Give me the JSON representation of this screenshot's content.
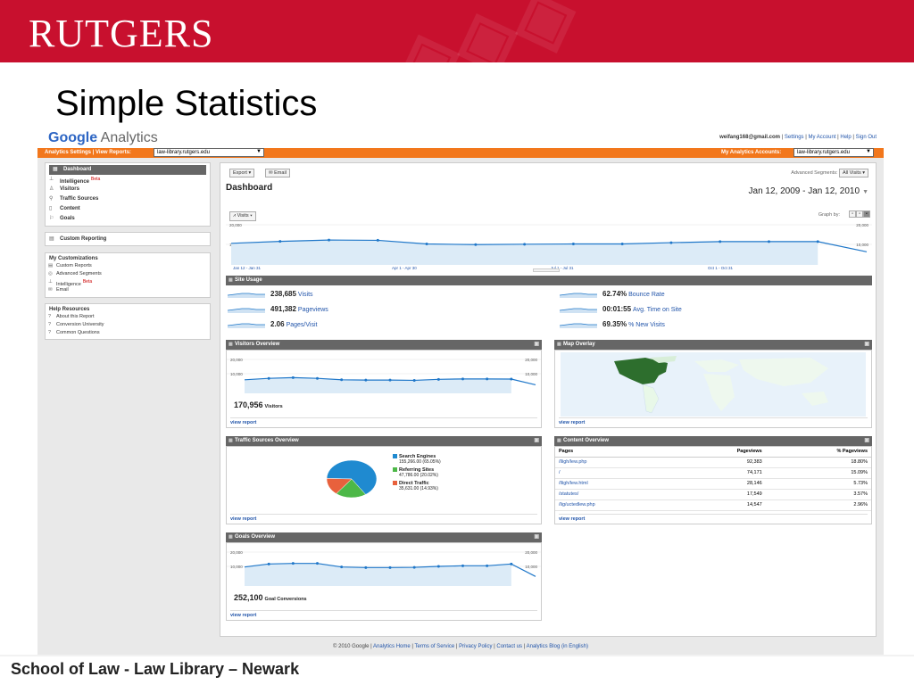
{
  "slide": {
    "banner_logo": "RUTGERS",
    "title": "Simple Statistics",
    "footer": "School of Law - Law Library – Newark",
    "colors": {
      "banner": "#c8102e",
      "ga_orange": "#f2771c",
      "link_blue": "#2255aa",
      "series_blue": "#1f77c9"
    }
  },
  "ga": {
    "logo_google": "Google",
    "logo_analytics": "Analytics",
    "user_email": "weifang168@gmail.com",
    "user_links": [
      "Settings",
      "My Account",
      "Help",
      "Sign Out"
    ],
    "bar_left": "Analytics Settings  |  View Reports:",
    "view_reports_value": "law-library.rutgers.edu",
    "bar_right": "My Analytics Accounts:",
    "accounts_value": "law-library.rutgers.edu"
  },
  "sidebar": {
    "nav": [
      {
        "label": "Dashboard",
        "icon": "grid-icon",
        "active": true
      },
      {
        "label": "Intelligence",
        "icon": "chart-icon",
        "beta": "Beta"
      },
      {
        "label": "Visitors",
        "icon": "person-icon"
      },
      {
        "label": "Traffic Sources",
        "icon": "traffic-icon"
      },
      {
        "label": "Content",
        "icon": "page-icon"
      },
      {
        "label": "Goals",
        "icon": "flag-icon"
      }
    ],
    "custom_reporting": "Custom Reporting",
    "my_customizations": {
      "title": "My Customizations",
      "items": [
        "Custom Reports",
        "Advanced Segments",
        "Intelligence",
        "Email"
      ],
      "beta": "Beta"
    },
    "help": {
      "title": "Help Resources",
      "items": [
        "About this Report",
        "Conversion University",
        "Common Questions"
      ]
    }
  },
  "toolbar": {
    "export": "Export",
    "email": "Email",
    "advanced_segments": "Advanced Segments:",
    "all_visits": "All Visits",
    "graph_by": "Graph by:",
    "visits_dropdown": "Visits"
  },
  "dashboard": {
    "title": "Dashboard",
    "date_range": "Jan 12, 2009 - Jan 12, 2010"
  },
  "main_chart": {
    "y_labels": [
      "20,000",
      "10,000"
    ],
    "x_labels": [
      "Jan 12 - Jan 31",
      "Apr 1 - Apr 30",
      "Jul 1 - Jul 31",
      "Oct 1 - Oct 31"
    ]
  },
  "site_usage": {
    "title": "Site Usage",
    "left": [
      {
        "value": "238,685",
        "label": "Visits"
      },
      {
        "value": "491,382",
        "label": "Pageviews"
      },
      {
        "value": "2.06",
        "label": "Pages/Visit"
      }
    ],
    "right": [
      {
        "value": "62.74%",
        "label": "Bounce Rate"
      },
      {
        "value": "00:01:55",
        "label": "Avg. Time on Site"
      },
      {
        "value": "69.35%",
        "label": "% New Visits"
      }
    ]
  },
  "visitors_overview": {
    "title": "Visitors Overview",
    "y_labels": [
      "20,000",
      "10,000"
    ],
    "total": "170,956",
    "unit": "Visitors",
    "view_report": "view report"
  },
  "map_overlay": {
    "title": "Map Overlay",
    "view_report": "view report"
  },
  "traffic_sources": {
    "title": "Traffic Sources Overview",
    "items": [
      {
        "label": "Search Engines",
        "detail": "155,266.00 (65.05%)",
        "color": "#1f8ad0"
      },
      {
        "label": "Referring Sites",
        "detail": "47,786.00 (20.02%)",
        "color": "#4db848"
      },
      {
        "label": "Direct Traffic",
        "detail": "35,631.00 (14.93%)",
        "color": "#e8613c"
      }
    ],
    "view_report": "view report"
  },
  "content_overview": {
    "title": "Content Overview",
    "columns": [
      "Pages",
      "Pageviews",
      "% Pageviews"
    ],
    "rows": [
      [
        "/lligh/lew.php",
        "92,383",
        "18.80%"
      ],
      [
        "/",
        "74,171",
        "15.09%"
      ],
      [
        "/lligh/lew.html",
        "28,146",
        "5.73%"
      ],
      [
        "/statutes/",
        "17,549",
        "3.57%"
      ],
      [
        "/lig/uctedlew.php",
        "14,547",
        "2.96%"
      ]
    ],
    "view_report": "view report"
  },
  "goals_overview": {
    "title": "Goals Overview",
    "y_labels": [
      "20,000",
      "10,000"
    ],
    "total": "252,100",
    "unit": "Goal Conversions",
    "view_report": "view report"
  },
  "footer_links": {
    "copyright": "© 2010 Google",
    "links": [
      "Analytics Home",
      "Terms of Service",
      "Privacy Policy",
      "Contact us",
      "Analytics Blog (in English)"
    ]
  },
  "chart_data": [
    {
      "type": "area",
      "series": [
        {
          "values": [
            16500,
            18000,
            19000,
            18800,
            16000,
            15500,
            15800,
            16000,
            16000,
            17000,
            17800,
            17800,
            17800,
            10000
          ]
        }
      ],
      "ylim": [
        0,
        30000
      ]
    },
    {
      "type": "line",
      "series": [
        {
          "values": [
            9500,
            10500,
            11000,
            10500,
            9500,
            9300,
            9300,
            9100,
            9800,
            10100,
            10100,
            10000,
            6000
          ]
        }
      ],
      "ylim": [
        0,
        25000
      ]
    },
    {
      "type": "pie",
      "categories": [
        "Search Engines",
        "Referring Sites",
        "Direct Traffic"
      ],
      "values": [
        65.05,
        20.02,
        14.93
      ]
    },
    {
      "type": "line",
      "series": [
        {
          "values": [
            16000,
            18500,
            19000,
            19000,
            16000,
            15500,
            15500,
            15700,
            16500,
            17000,
            17000,
            18500,
            8000
          ]
        }
      ],
      "ylim": [
        0,
        30000
      ]
    }
  ]
}
